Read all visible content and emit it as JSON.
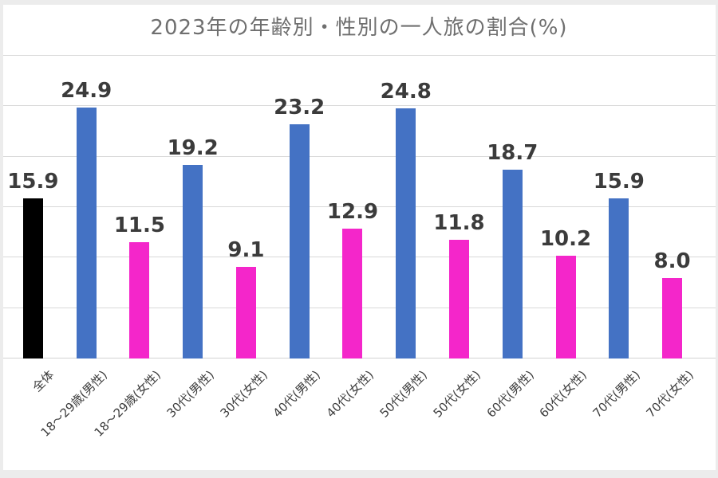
{
  "palette": {
    "overall_bar": "#000000",
    "male_bar": "#4472C4",
    "female_bar": "#F426CA",
    "gridline": "#D9D9D9",
    "axis_line": "#D2D2D2",
    "title_text": "#6F6F6F",
    "value_text": "#3B3B3B",
    "axis_label_text": "#3D3D3D",
    "page_edge": "#ECECEC"
  },
  "chart_data": {
    "type": "bar",
    "title": "2023年の年齢別・性別の一人旅の割合(%)",
    "categories": [
      "全体",
      "18〜29歳(男性)",
      "18〜29歳(女性)",
      "30代(男性)",
      "30代(女性)",
      "40代(男性)",
      "40代(女性)",
      "50代(男性)",
      "50代(女性)",
      "60代(男性)",
      "60代(女性)",
      "70代(男性)",
      "70代(女性)"
    ],
    "values": [
      15.9,
      24.9,
      11.5,
      19.2,
      9.1,
      23.2,
      12.9,
      24.8,
      11.8,
      18.7,
      10.2,
      15.9,
      8.0
    ],
    "value_labels": [
      "15.9",
      "24.9",
      "11.5",
      "19.2",
      "9.1",
      "23.2",
      "12.9",
      "24.8",
      "11.8",
      "18.7",
      "10.2",
      "15.9",
      "8.0"
    ],
    "bar_colors": [
      "#000000",
      "#4472C4",
      "#F426CA",
      "#4472C4",
      "#F426CA",
      "#4472C4",
      "#F426CA",
      "#4472C4",
      "#F426CA",
      "#4472C4",
      "#F426CA",
      "#4472C4",
      "#F426CA"
    ],
    "ylim": [
      0,
      30
    ],
    "gridline_step": 5,
    "grid": true,
    "legend": "none",
    "xlabel": "",
    "ylabel": ""
  }
}
